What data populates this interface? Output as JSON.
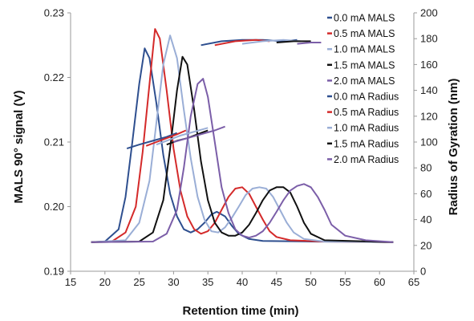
{
  "chart_data": {
    "type": "line",
    "xlabel": "Retention time (min)",
    "ylabel": "MALS 90° signal (V)",
    "y2label": "Radius of Gyration (nm)",
    "xlim": [
      15,
      65
    ],
    "ylim": [
      0.19,
      0.23
    ],
    "y2lim": [
      0,
      200
    ],
    "xticks": [
      "15",
      "20",
      "25",
      "30",
      "35",
      "40",
      "45",
      "50",
      "55",
      "60",
      "65"
    ],
    "yticks": [
      "0.19",
      "0.20",
      "0.21",
      "0.22",
      "0.23"
    ],
    "y2ticks": [
      "0",
      "20",
      "40",
      "60",
      "80",
      "100",
      "120",
      "140",
      "160",
      "180",
      "200"
    ],
    "grid": false,
    "legend_position": "right-inside",
    "series": [
      {
        "name": "0.0 mA MALS",
        "axis": "left",
        "color": "#2e4f8f",
        "x": [
          18,
          20,
          22,
          23,
          24,
          25,
          25.8,
          26.5,
          27.5,
          28.5,
          29.5,
          30.5,
          31.5,
          32.5,
          33.5,
          34.5,
          35.5,
          36.3,
          37.5,
          38.5,
          39.5,
          41,
          43,
          50,
          62
        ],
        "y": [
          0.1945,
          0.1946,
          0.1965,
          0.2015,
          0.21,
          0.219,
          0.2245,
          0.223,
          0.216,
          0.208,
          0.202,
          0.1985,
          0.1965,
          0.196,
          0.1965,
          0.1975,
          0.1988,
          0.1992,
          0.1985,
          0.197,
          0.1958,
          0.195,
          0.1947,
          0.1946,
          0.1945
        ]
      },
      {
        "name": "0.5 mA MALS",
        "axis": "left",
        "color": "#d42a2a",
        "x": [
          18,
          21,
          23,
          24.5,
          25.5,
          26.5,
          27.3,
          28,
          29,
          30,
          31,
          32,
          33,
          34,
          35,
          36,
          37,
          38,
          39,
          40,
          41,
          42,
          43,
          44,
          45,
          47,
          52,
          62
        ],
        "y": [
          0.1945,
          0.1946,
          0.196,
          0.2,
          0.2085,
          0.219,
          0.2275,
          0.226,
          0.218,
          0.209,
          0.2025,
          0.1985,
          0.1965,
          0.1958,
          0.1962,
          0.1975,
          0.1995,
          0.2015,
          0.2028,
          0.203,
          0.202,
          0.2,
          0.198,
          0.1962,
          0.1953,
          0.1948,
          0.1946,
          0.1945
        ]
      },
      {
        "name": "1.0 mA MALS",
        "axis": "left",
        "color": "#9aaed6",
        "x": [
          18,
          23,
          25,
          26.5,
          27.5,
          28.5,
          29.5,
          30.5,
          31.5,
          32.5,
          33.5,
          34.5,
          35.5,
          36.5,
          37.5,
          38.5,
          39.5,
          40.5,
          41.5,
          42.5,
          43.5,
          44.5,
          45.5,
          46.5,
          47.5,
          49,
          52,
          62
        ],
        "y": [
          0.1945,
          0.1948,
          0.1975,
          0.204,
          0.213,
          0.222,
          0.2265,
          0.223,
          0.215,
          0.2075,
          0.2015,
          0.198,
          0.1962,
          0.196,
          0.1968,
          0.1983,
          0.2,
          0.2018,
          0.2028,
          0.203,
          0.2028,
          0.2015,
          0.1995,
          0.1975,
          0.196,
          0.195,
          0.1946,
          0.1945
        ]
      },
      {
        "name": "1.5 mA MALS",
        "axis": "left",
        "color": "#111111",
        "x": [
          18,
          25,
          27,
          28.5,
          29.5,
          30.5,
          31.3,
          32,
          33,
          34,
          35,
          36,
          37,
          38,
          39,
          40,
          41,
          42,
          43,
          44,
          45,
          46,
          47,
          48,
          49,
          50,
          52,
          62
        ],
        "y": [
          0.1945,
          0.1946,
          0.196,
          0.201,
          0.209,
          0.218,
          0.2232,
          0.222,
          0.215,
          0.207,
          0.201,
          0.1975,
          0.196,
          0.1955,
          0.1955,
          0.196,
          0.1972,
          0.199,
          0.201,
          0.2025,
          0.203,
          0.203,
          0.2022,
          0.2,
          0.1975,
          0.1958,
          0.1948,
          0.1945
        ]
      },
      {
        "name": "2.0 mA MALS",
        "axis": "left",
        "color": "#7b5ea8",
        "x": [
          18,
          27,
          29,
          30.5,
          31.5,
          32.5,
          33.5,
          34.3,
          35,
          36,
          37,
          38,
          39,
          40,
          41,
          42,
          43,
          44,
          45,
          46,
          47,
          48,
          49,
          50,
          51,
          52,
          53,
          55,
          58,
          62
        ],
        "y": [
          0.1945,
          0.1946,
          0.1958,
          0.1995,
          0.206,
          0.214,
          0.219,
          0.2198,
          0.217,
          0.21,
          0.203,
          0.199,
          0.1965,
          0.1955,
          0.1952,
          0.1955,
          0.1962,
          0.1975,
          0.1992,
          0.201,
          0.2025,
          0.2032,
          0.2035,
          0.203,
          0.2015,
          0.1995,
          0.1972,
          0.1955,
          0.1948,
          0.1945
        ]
      },
      {
        "name": "0.0 mA Radius",
        "axis": "right",
        "color": "#2e4f8f",
        "x": [
          23.2,
          25,
          27,
          29,
          30.5,
          34,
          37,
          40,
          43,
          46,
          48
        ],
        "y": [
          95,
          98,
          101,
          104,
          107,
          175,
          178,
          179,
          179,
          178,
          179
        ]
      },
      {
        "name": "0.5 mA Radius",
        "axis": "right",
        "color": "#d42a2a",
        "x": [
          26,
          27.5,
          29,
          30.5,
          31.8,
          36,
          39,
          42,
          44
        ],
        "y": [
          97,
          100,
          103,
          106,
          109,
          175,
          178,
          179,
          178
        ]
      },
      {
        "name": "1.0 mA Radius",
        "axis": "right",
        "color": "#9aaed6",
        "x": [
          27.5,
          29,
          31,
          33,
          35,
          40,
          43,
          46,
          48.5
        ],
        "y": [
          98,
          101,
          105,
          108,
          111,
          176,
          178,
          179,
          178
        ]
      },
      {
        "name": "1.5 mA Radius",
        "axis": "right",
        "color": "#111111",
        "x": [
          29,
          30.5,
          32,
          33.5,
          35,
          45,
          47.5,
          50
        ],
        "y": [
          98,
          101,
          103,
          106,
          109,
          177,
          178,
          178
        ]
      },
      {
        "name": "2.0 mA Radius",
        "axis": "right",
        "color": "#7b5ea8",
        "x": [
          30,
          32,
          34,
          36,
          37.5,
          48,
          50,
          51.5
        ],
        "y": [
          100,
          103,
          106,
          109,
          112,
          176,
          177,
          177
        ]
      }
    ]
  }
}
